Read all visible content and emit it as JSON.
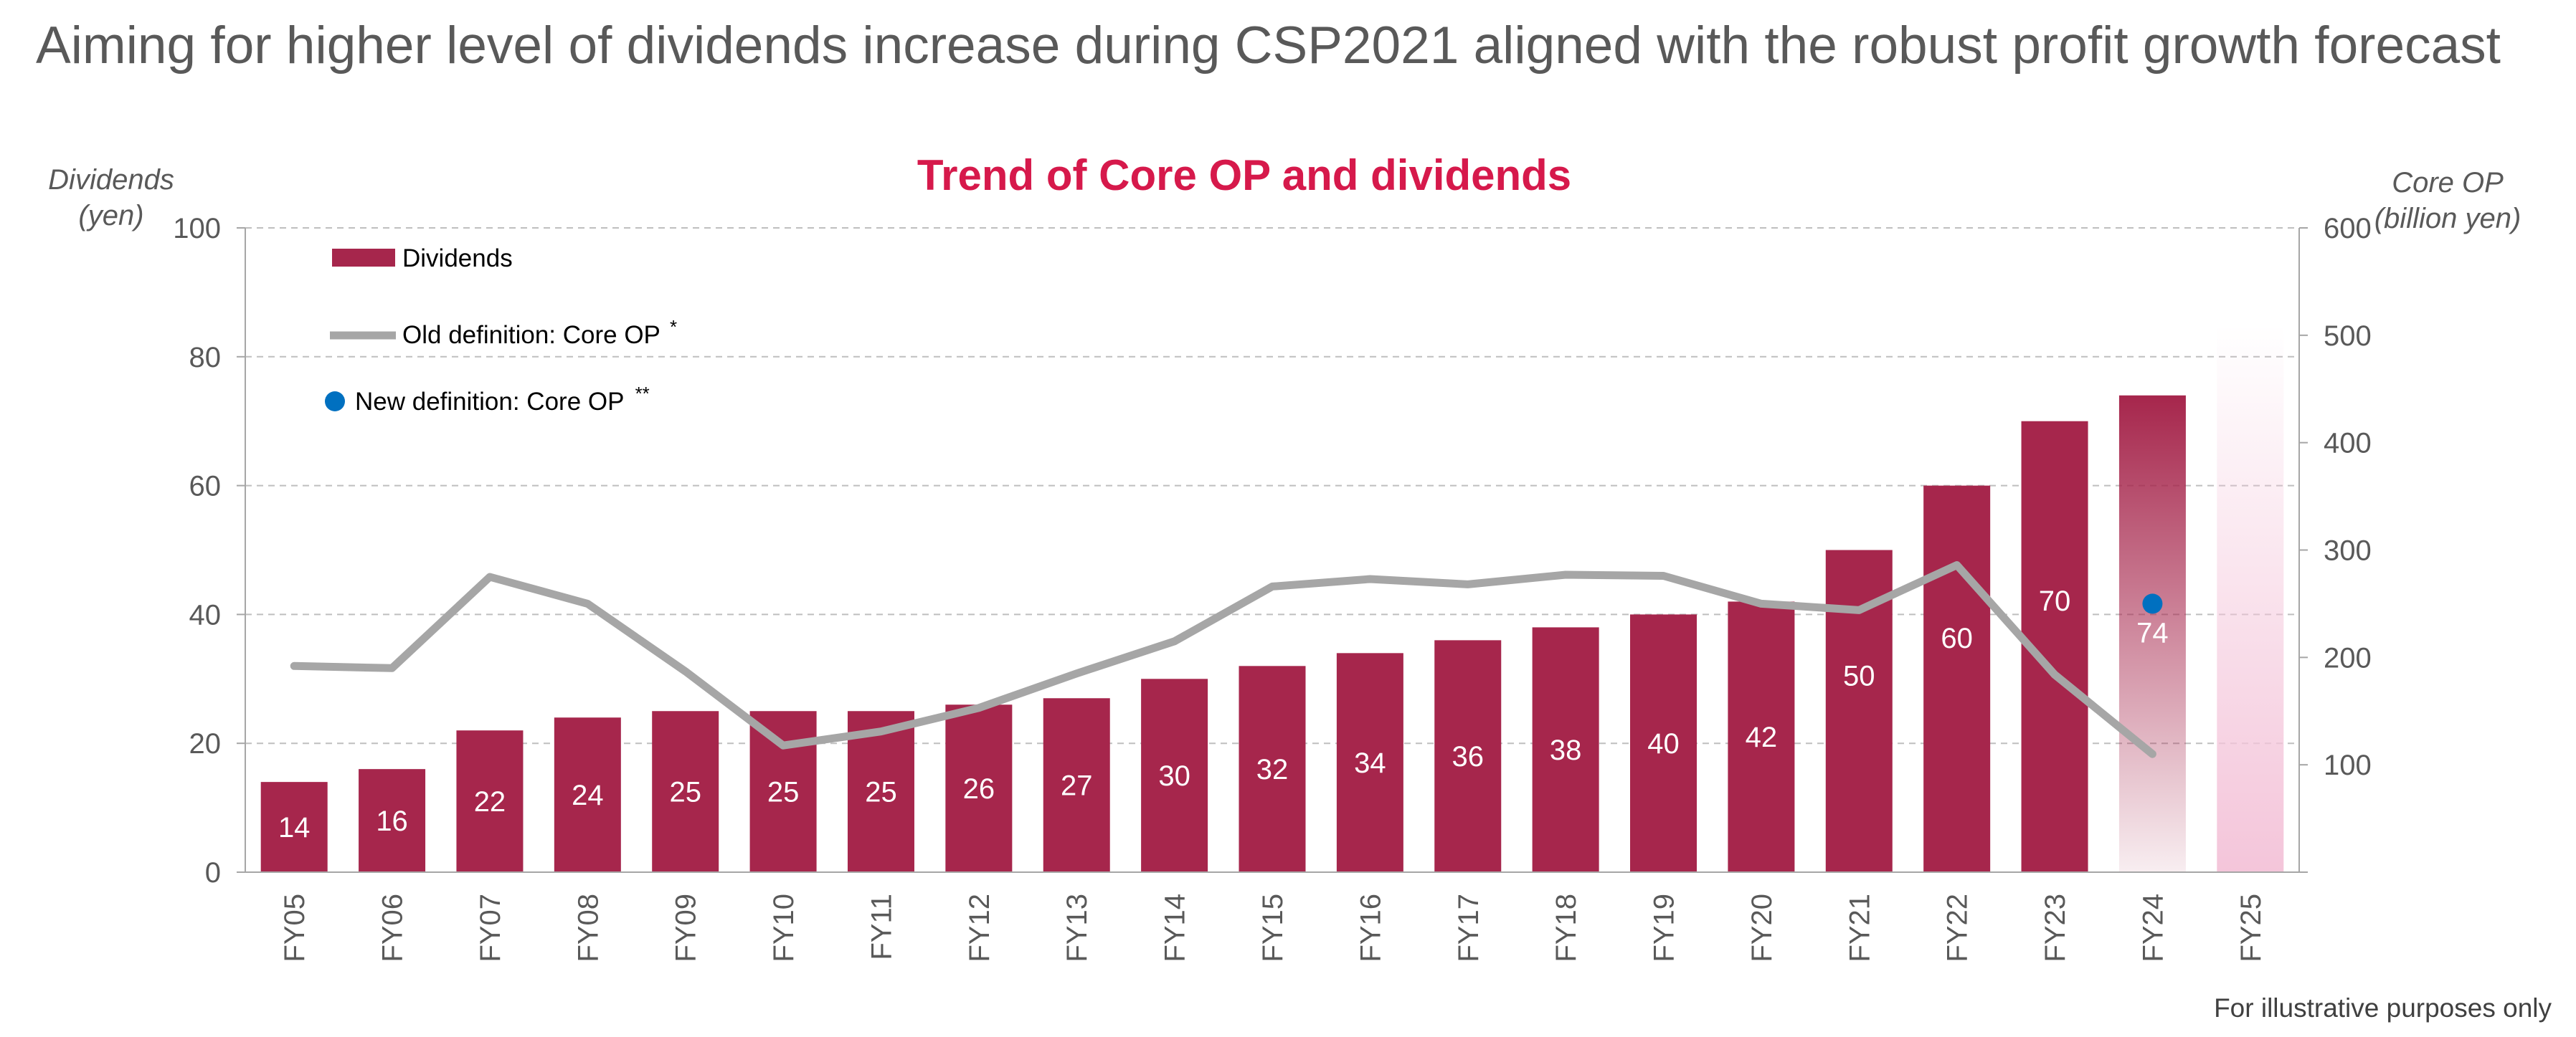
{
  "page_title": "Aiming for higher level of dividends increase during CSP2021 aligned with the robust profit growth forecast",
  "footnote": "For illustrative purposes only",
  "colors": {
    "bar": "#A6264C",
    "forecast_light": "#F4C5DA",
    "old_line": "#A6A6A6",
    "new_dot": "#0070C0",
    "chart_title": "#D6194B",
    "axis_text": "#595959",
    "grid": "#BFBFBF"
  },
  "chart_data": {
    "type": "bar",
    "title": "Trend of Core OP and dividends",
    "categories": [
      "FY05",
      "FY06",
      "FY07",
      "FY08",
      "FY09",
      "FY10",
      "FY11",
      "FY12",
      "FY13",
      "FY14",
      "FY15",
      "FY16",
      "FY17",
      "FY18",
      "FY19",
      "FY20",
      "FY21",
      "FY22",
      "FY23",
      "FY24",
      "FY25"
    ],
    "y_left": {
      "label_line1": "Dividends",
      "label_line2": "(yen)",
      "min": 0,
      "max": 100,
      "ticks": [
        0,
        20,
        40,
        60,
        80,
        100
      ]
    },
    "y_right": {
      "label_line1": "Core OP",
      "label_line2": "(billion yen)",
      "min": 0,
      "max": 600,
      "ticks": [
        "",
        "100",
        "200",
        "300",
        "400",
        "500",
        "600"
      ]
    },
    "grid": true,
    "legend_position": "top-left",
    "series": [
      {
        "name": "Dividends",
        "kind": "bar",
        "axis": "left",
        "values": [
          14,
          16,
          22,
          24,
          25,
          25,
          25,
          26,
          27,
          30,
          32,
          34,
          36,
          38,
          40,
          42,
          50,
          60,
          70,
          74,
          85
        ],
        "labels": [
          "14",
          "16",
          "22",
          "24",
          "25",
          "25",
          "25",
          "26",
          "27",
          "30",
          "32",
          "34",
          "36",
          "38",
          "40",
          "42",
          "50",
          "60",
          "70",
          "74",
          ""
        ],
        "styles": [
          "solid",
          "solid",
          "solid",
          "solid",
          "solid",
          "solid",
          "solid",
          "solid",
          "solid",
          "solid",
          "solid",
          "solid",
          "solid",
          "solid",
          "solid",
          "solid",
          "solid",
          "solid",
          "solid",
          "fade",
          "light"
        ]
      },
      {
        "name": "Old definition: Core OP",
        "marker": "*",
        "kind": "line",
        "axis": "right",
        "values": [
          192,
          190,
          275,
          250,
          187,
          118,
          131,
          153,
          185,
          215,
          266,
          273,
          268,
          277,
          276,
          250,
          244,
          286,
          184,
          110,
          null
        ]
      },
      {
        "name": "New definition: Core OP",
        "marker": "**",
        "kind": "point",
        "axis": "right",
        "values": [
          null,
          null,
          null,
          null,
          null,
          null,
          null,
          null,
          null,
          null,
          null,
          null,
          null,
          null,
          null,
          null,
          null,
          null,
          null,
          250,
          null
        ]
      }
    ]
  }
}
